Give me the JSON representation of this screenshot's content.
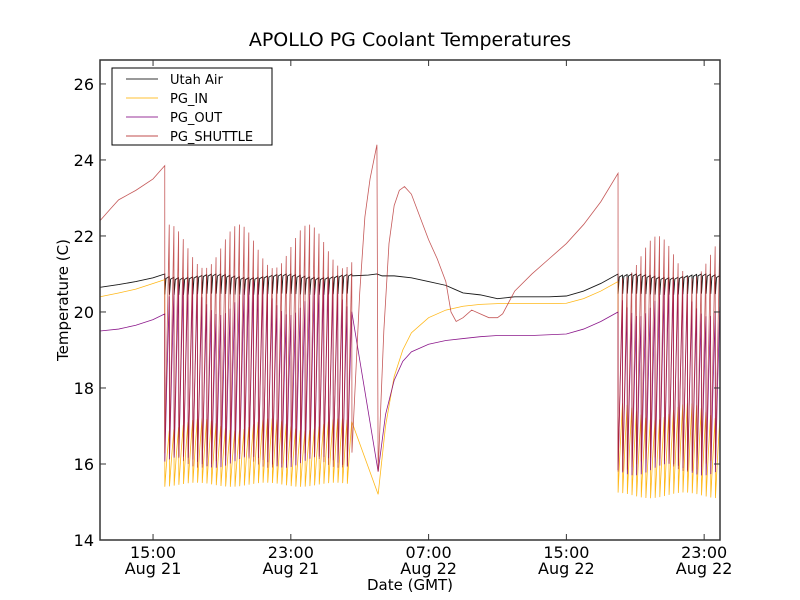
{
  "chart_data": {
    "type": "line",
    "title": "APOLLO PG Coolant Temperatures",
    "xlabel": "Date (GMT)",
    "ylabel": "Temperature (C)",
    "x_unit": "hours since Aug 21 00:00 GMT",
    "xlim": [
      11.92,
      47.92
    ],
    "ylim": [
      14,
      26.63
    ],
    "grid": false,
    "legend_position": "top-left",
    "y_ticks": [
      {
        "value": 14,
        "label": "14"
      },
      {
        "value": 16,
        "label": "16"
      },
      {
        "value": 18,
        "label": "18"
      },
      {
        "value": 20,
        "label": "20"
      },
      {
        "value": 22,
        "label": "22"
      },
      {
        "value": 24,
        "label": "24"
      },
      {
        "value": 26,
        "label": "26"
      }
    ],
    "x_ticks": [
      {
        "value": 15,
        "label_time": "15:00",
        "label_date": "Aug 21"
      },
      {
        "value": 23,
        "label_time": "23:00",
        "label_date": "Aug 21"
      },
      {
        "value": 31,
        "label_time": "07:00",
        "label_date": "Aug 22"
      },
      {
        "value": 39,
        "label_time": "15:00",
        "label_date": "Aug 22"
      },
      {
        "value": 47,
        "label_time": "23:00",
        "label_date": "Aug 22"
      }
    ],
    "series": [
      {
        "name": "Utah Air",
        "color": "#000000",
        "points": [
          [
            11.92,
            20.65
          ],
          [
            13.0,
            20.72
          ],
          [
            14.0,
            20.8
          ],
          [
            15.0,
            20.9
          ],
          [
            15.68,
            21.0
          ],
          [
            26.55,
            20.95
          ],
          [
            27.5,
            20.97
          ],
          [
            28.0,
            21.0
          ],
          [
            28.3,
            20.95
          ],
          [
            29.0,
            20.95
          ],
          [
            30.0,
            20.9
          ],
          [
            31.0,
            20.8
          ],
          [
            32.0,
            20.7
          ],
          [
            32.5,
            20.6
          ],
          [
            33.0,
            20.5
          ],
          [
            34.0,
            20.45
          ],
          [
            35.0,
            20.35
          ],
          [
            36.0,
            20.4
          ],
          [
            37.0,
            20.4
          ],
          [
            38.0,
            20.4
          ],
          [
            39.0,
            20.42
          ],
          [
            40.0,
            20.55
          ],
          [
            41.0,
            20.75
          ],
          [
            42.0,
            21.0
          ],
          [
            47.92,
            20.9
          ]
        ],
        "cycles": [
          {
            "start": 15.68,
            "end": 26.55,
            "count": 40,
            "high": 21.0,
            "low": 20.45
          },
          {
            "start": 42.0,
            "end": 47.92,
            "count": 22,
            "high": 21.0,
            "low": 20.45
          }
        ]
      },
      {
        "name": "PG_IN",
        "color": "#ffb000",
        "points": [
          [
            11.92,
            20.4
          ],
          [
            13.0,
            20.5
          ],
          [
            14.0,
            20.6
          ],
          [
            15.0,
            20.75
          ],
          [
            15.68,
            20.85
          ],
          [
            28.07,
            15.2
          ],
          [
            28.5,
            17.0
          ],
          [
            29.0,
            18.3
          ],
          [
            29.5,
            19.0
          ],
          [
            30.0,
            19.45
          ],
          [
            31.0,
            19.85
          ],
          [
            32.0,
            20.05
          ],
          [
            33.0,
            20.15
          ],
          [
            34.0,
            20.2
          ],
          [
            35.0,
            20.22
          ],
          [
            36.0,
            20.22
          ],
          [
            37.0,
            20.22
          ],
          [
            38.0,
            20.22
          ],
          [
            39.0,
            20.23
          ],
          [
            40.0,
            20.35
          ],
          [
            41.0,
            20.55
          ],
          [
            42.0,
            20.8
          ],
          [
            47.92,
            16.5
          ]
        ],
        "cycles": [
          {
            "start": 15.68,
            "end": 26.55,
            "count": 40,
            "high": 17.2,
            "low": 15.4
          },
          {
            "start": 42.0,
            "end": 47.92,
            "count": 22,
            "high": 17.6,
            "low": 15.1
          }
        ]
      },
      {
        "name": "PG_OUT",
        "color": "#800080",
        "points": [
          [
            11.92,
            19.5
          ],
          [
            13.0,
            19.55
          ],
          [
            14.0,
            19.65
          ],
          [
            15.0,
            19.8
          ],
          [
            15.68,
            19.95
          ],
          [
            28.07,
            15.8
          ],
          [
            28.5,
            17.3
          ],
          [
            29.0,
            18.2
          ],
          [
            29.5,
            18.7
          ],
          [
            30.0,
            18.95
          ],
          [
            31.0,
            19.15
          ],
          [
            32.0,
            19.25
          ],
          [
            33.0,
            19.3
          ],
          [
            34.0,
            19.35
          ],
          [
            35.0,
            19.38
          ],
          [
            36.0,
            19.38
          ],
          [
            37.0,
            19.38
          ],
          [
            38.0,
            19.4
          ],
          [
            39.0,
            19.42
          ],
          [
            40.0,
            19.55
          ],
          [
            41.0,
            19.75
          ],
          [
            42.0,
            20.0
          ],
          [
            47.92,
            16.8
          ]
        ],
        "cycles": [
          {
            "start": 15.68,
            "end": 26.55,
            "count": 40,
            "high": 20.8,
            "low": 15.9
          },
          {
            "start": 42.0,
            "end": 47.92,
            "count": 22,
            "high": 20.8,
            "low": 15.7
          }
        ]
      },
      {
        "name": "PG_SHUTTLE",
        "color": "#b22222",
        "points": [
          [
            11.92,
            22.4
          ],
          [
            12.5,
            22.7
          ],
          [
            13.0,
            22.95
          ],
          [
            14.0,
            23.2
          ],
          [
            15.0,
            23.5
          ],
          [
            15.68,
            23.85
          ],
          [
            26.55,
            16.3
          ],
          [
            27.0,
            20.5
          ],
          [
            27.3,
            22.5
          ],
          [
            27.6,
            23.5
          ],
          [
            28.0,
            24.4
          ],
          [
            28.07,
            15.8
          ],
          [
            28.4,
            19.5
          ],
          [
            28.7,
            21.8
          ],
          [
            29.0,
            22.8
          ],
          [
            29.3,
            23.2
          ],
          [
            29.6,
            23.3
          ],
          [
            30.0,
            23.1
          ],
          [
            30.5,
            22.5
          ],
          [
            31.0,
            21.9
          ],
          [
            31.5,
            21.4
          ],
          [
            32.0,
            20.8
          ],
          [
            32.3,
            20.0
          ],
          [
            32.6,
            19.75
          ],
          [
            33.0,
            19.85
          ],
          [
            33.5,
            20.05
          ],
          [
            34.0,
            19.95
          ],
          [
            34.5,
            19.85
          ],
          [
            35.0,
            19.85
          ],
          [
            35.3,
            19.95
          ],
          [
            36.0,
            20.55
          ],
          [
            37.0,
            21.0
          ],
          [
            38.0,
            21.4
          ],
          [
            39.0,
            21.8
          ],
          [
            40.0,
            22.3
          ],
          [
            41.0,
            22.9
          ],
          [
            42.0,
            23.65
          ],
          [
            47.92,
            18.0
          ]
        ],
        "cycles": [
          {
            "start": 15.68,
            "end": 26.55,
            "count": 40,
            "high": 22.3,
            "low": 15.9
          },
          {
            "start": 42.0,
            "end": 47.92,
            "count": 22,
            "high": 22.0,
            "low": 15.8
          }
        ]
      }
    ]
  }
}
